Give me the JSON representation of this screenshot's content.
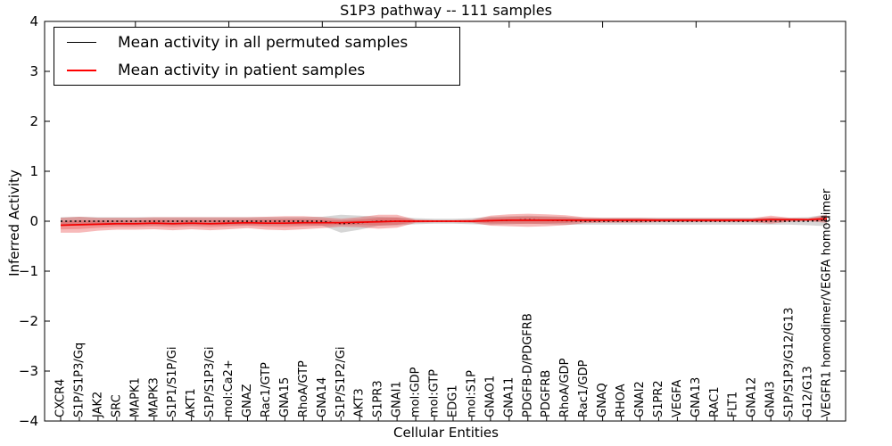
{
  "chart_data": {
    "type": "line",
    "title": "S1P3 pathway -- 111 samples",
    "xlabel": "Cellular Entities",
    "ylabel": "Inferred Activity",
    "ylim": [
      -4,
      4
    ],
    "ytick_labels": [
      "4",
      "3",
      "2",
      "1",
      "0",
      "−1",
      "−2",
      "−3",
      "−4"
    ],
    "ytick_values": [
      4,
      3,
      2,
      1,
      0,
      -1,
      -2,
      -3,
      -4
    ],
    "xtick_major_indices": [
      4,
      9,
      14,
      19,
      24,
      29,
      34,
      39
    ],
    "grid": false,
    "legend_position": "upper left",
    "categories": [
      "CXCR4",
      "S1P/S1P3/Gq",
      "JAK2",
      "SRC",
      "MAPK1",
      "MAPK3",
      "S1P1/S1P/Gi",
      "AKT1",
      "S1P/S1P3/Gi",
      "mol:Ca2+",
      "GNAZ",
      "Rac1/GTP",
      "GNA15",
      "RhoA/GTP",
      "GNA14",
      "S1P/S1P2/Gi",
      "AKT3",
      "S1PR3",
      "GNAI1",
      "mol:GDP",
      "mol:GTP",
      "EDG1",
      "mol:S1P",
      "GNAO1",
      "GNA11",
      "PDGFB-D/PDGFRB",
      "PDGFRB",
      "RhoA/GDP",
      "Rac1/GDP",
      "GNAQ",
      "RHOA",
      "GNAI2",
      "S1PR2",
      "VEGFA",
      "GNA13",
      "RAC1",
      "FLT1",
      "GNA12",
      "GNAI3",
      "S1P/S1P3/G12/G13",
      "G12/G13",
      "VEGFR1 homodimer/VEGFA homodimer"
    ],
    "series": [
      {
        "name": "Mean activity in all permuted samples",
        "color": "#000000",
        "line_style": "dotted",
        "band_color": "rgba(120,120,120,0.30)",
        "values": [
          0,
          0,
          0,
          0,
          0,
          0,
          0,
          0,
          0,
          0,
          0,
          0,
          0,
          0,
          0,
          -0.05,
          -0.03,
          0,
          0,
          0,
          0,
          0,
          0,
          0.01,
          0.02,
          0.03,
          0.02,
          0.01,
          0,
          0,
          0,
          0,
          0,
          0,
          0,
          0,
          0,
          0,
          0,
          0,
          0,
          0.02
        ],
        "band": [
          0.08,
          0.09,
          0.08,
          0.08,
          0.08,
          0.08,
          0.08,
          0.08,
          0.08,
          0.08,
          0.08,
          0.08,
          0.08,
          0.08,
          0.09,
          0.18,
          0.14,
          0.09,
          0.08,
          0.06,
          0.05,
          0.05,
          0.06,
          0.08,
          0.08,
          0.08,
          0.08,
          0.08,
          0.07,
          0.07,
          0.07,
          0.07,
          0.07,
          0.07,
          0.07,
          0.07,
          0.07,
          0.07,
          0.07,
          0.07,
          0.08,
          0.12
        ]
      },
      {
        "name": "Mean activity in patient samples",
        "color": "#f50000",
        "line_style": "solid",
        "band_color": "rgba(228,26,28,0.30)",
        "values": [
          -0.08,
          -0.07,
          -0.06,
          -0.05,
          -0.05,
          -0.04,
          -0.05,
          -0.04,
          -0.05,
          -0.04,
          -0.03,
          -0.04,
          -0.04,
          -0.03,
          -0.03,
          -0.03,
          -0.02,
          -0.01,
          0,
          0,
          0,
          0,
          0,
          0.01,
          0.02,
          0.02,
          0.02,
          0.02,
          0.02,
          0.02,
          0.02,
          0.02,
          0.02,
          0.02,
          0.02,
          0.02,
          0.02,
          0.02,
          0.03,
          0.03,
          0.03,
          0.05
        ],
        "band": [
          0.15,
          0.16,
          0.13,
          0.12,
          0.12,
          0.12,
          0.13,
          0.12,
          0.13,
          0.12,
          0.11,
          0.13,
          0.14,
          0.13,
          0.11,
          0.08,
          0.1,
          0.14,
          0.13,
          0.03,
          0.02,
          0.02,
          0.03,
          0.1,
          0.12,
          0.13,
          0.12,
          0.1,
          0.06,
          0.05,
          0.05,
          0.05,
          0.04,
          0.04,
          0.04,
          0.04,
          0.04,
          0.04,
          0.08,
          0.04,
          0.03,
          0.08
        ]
      }
    ]
  }
}
